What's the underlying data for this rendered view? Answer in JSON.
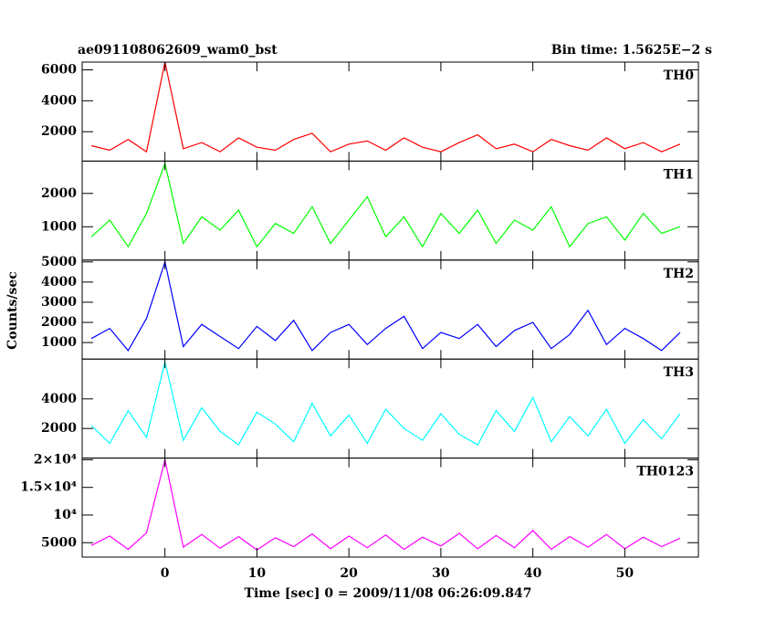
{
  "figure": {
    "title": "ae091108062609_wam0_bst",
    "subtitle": "Bin time: 1.5625E−2 s",
    "y_label": "Counts/sec",
    "x_label": "Time [sec] 0 = 2009/11/08 06:26:09.847",
    "xlim": [
      -9,
      58
    ],
    "xticks": [
      0,
      10,
      20,
      30,
      40,
      50
    ]
  },
  "chart_data": [
    {
      "type": "line",
      "label": "TH0",
      "color": "#ff0000",
      "ylim": [
        100,
        6500
      ],
      "yticks": [
        2000,
        4000,
        6000
      ],
      "x": [
        -8,
        -6,
        -4,
        -2,
        0,
        2,
        4,
        6,
        8,
        10,
        12,
        14,
        16,
        18,
        20,
        22,
        24,
        26,
        28,
        30,
        32,
        34,
        36,
        38,
        40,
        42,
        44,
        46,
        48,
        50,
        52,
        54,
        56
      ],
      "values": [
        1100,
        800,
        1500,
        700,
        6500,
        900,
        1300,
        700,
        1600,
        1000,
        800,
        1500,
        1900,
        700,
        1200,
        1400,
        800,
        1600,
        1000,
        700,
        1300,
        1800,
        900,
        1200,
        700,
        1500,
        1100,
        800,
        1600,
        900,
        1300,
        700,
        1200
      ]
    },
    {
      "type": "line",
      "label": "TH1",
      "color": "#00ff00",
      "ylim": [
        0,
        2970
      ],
      "yticks": [
        1000,
        2000
      ],
      "x": [
        -8,
        -6,
        -4,
        -2,
        0,
        2,
        4,
        6,
        8,
        10,
        12,
        14,
        16,
        18,
        20,
        22,
        24,
        26,
        28,
        30,
        32,
        34,
        36,
        38,
        40,
        42,
        44,
        46,
        48,
        50,
        52,
        54,
        56
      ],
      "values": [
        700,
        1200,
        400,
        1400,
        2900,
        500,
        1300,
        900,
        1500,
        400,
        1100,
        800,
        1600,
        500,
        1200,
        1900,
        700,
        1300,
        400,
        1400,
        800,
        1500,
        500,
        1200,
        900,
        1600,
        400,
        1100,
        1300,
        600,
        1400,
        800,
        1000
      ]
    },
    {
      "type": "line",
      "label": "TH2",
      "color": "#0000ff",
      "ylim": [
        180,
        5090
      ],
      "yticks": [
        1000,
        2000,
        3000,
        4000,
        5000
      ],
      "x": [
        -8,
        -6,
        -4,
        -2,
        0,
        2,
        4,
        6,
        8,
        10,
        12,
        14,
        16,
        18,
        20,
        22,
        24,
        26,
        28,
        30,
        32,
        34,
        36,
        38,
        40,
        42,
        44,
        46,
        48,
        50,
        52,
        54,
        56
      ],
      "values": [
        1200,
        1700,
        600,
        2200,
        5000,
        800,
        1900,
        1300,
        700,
        1800,
        1100,
        2100,
        600,
        1500,
        1900,
        900,
        1700,
        2300,
        700,
        1500,
        1200,
        1900,
        800,
        1600,
        2000,
        700,
        1400,
        2600,
        900,
        1700,
        1200,
        600,
        1500
      ]
    },
    {
      "type": "line",
      "label": "TH3",
      "color": "#00ffff",
      "ylim": [
        0,
        6690
      ],
      "yticks": [
        2000,
        4000
      ],
      "x": [
        -8,
        -6,
        -4,
        -2,
        0,
        2,
        4,
        6,
        8,
        10,
        12,
        14,
        16,
        18,
        20,
        22,
        24,
        26,
        28,
        30,
        32,
        34,
        36,
        38,
        40,
        42,
        44,
        46,
        48,
        50,
        52,
        54,
        56
      ],
      "values": [
        2200,
        1000,
        3200,
        1400,
        6500,
        1200,
        3400,
        1800,
        900,
        3100,
        2300,
        1100,
        3700,
        1500,
        2900,
        1000,
        3300,
        2000,
        1200,
        3000,
        1600,
        900,
        3200,
        1800,
        4100,
        1100,
        2800,
        1500,
        3300,
        1000,
        2600,
        1300,
        3000
      ]
    },
    {
      "type": "line",
      "label": "TH0123",
      "color": "#ff00ff",
      "ylim": [
        2400,
        20300
      ],
      "yticks": [
        5000,
        {
          "value": 10000,
          "label": "10⁴"
        },
        {
          "value": 15000,
          "label": "1.5×10⁴"
        },
        {
          "value": 20000,
          "label": "2×10⁴"
        }
      ],
      "x": [
        -8,
        -6,
        -4,
        -2,
        0,
        2,
        4,
        6,
        8,
        10,
        12,
        14,
        16,
        18,
        20,
        22,
        24,
        26,
        28,
        30,
        32,
        34,
        36,
        38,
        40,
        42,
        44,
        46,
        48,
        50,
        52,
        54,
        56
      ],
      "values": [
        4500,
        6200,
        3800,
        6800,
        20000,
        4200,
        6500,
        4000,
        6100,
        3700,
        5900,
        4300,
        6600,
        3900,
        6200,
        4100,
        6400,
        3800,
        6000,
        4400,
        6700,
        3900,
        6300,
        4100,
        7200,
        3800,
        6100,
        4200,
        6500,
        3900,
        6000,
        4300,
        5800
      ]
    }
  ]
}
